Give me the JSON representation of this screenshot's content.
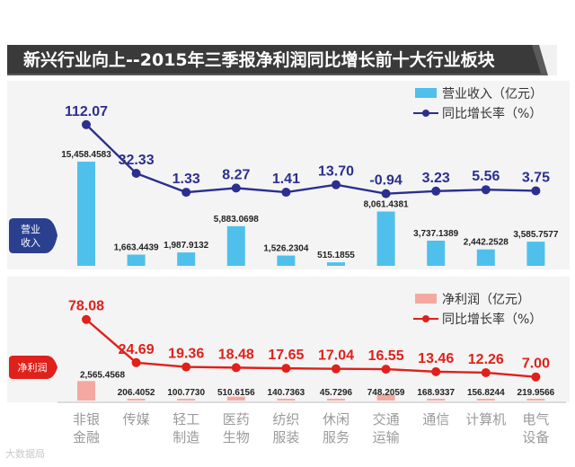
{
  "chart_data": {
    "type": "bar+line",
    "title": "新兴行业向上--2015年三季报净利润同比增长前十大行业板块",
    "categories": [
      [
        "非银",
        "金融"
      ],
      [
        "传媒",
        ""
      ],
      [
        "轻工",
        "制造"
      ],
      [
        "医药",
        "生物"
      ],
      [
        "纺织",
        "服装"
      ],
      [
        "休闲",
        "服务"
      ],
      [
        "交通",
        "运输"
      ],
      [
        "通信",
        ""
      ],
      [
        "计算机",
        ""
      ],
      [
        "电气",
        "设备"
      ]
    ],
    "revenue_panel": {
      "tag": [
        "营业",
        "收入"
      ],
      "legend": {
        "bar": "营业收入（亿元）",
        "line": "同比增长率（%）"
      },
      "bar_labels": [
        "15,458.4583",
        "1,663.4439",
        "1,987.9132",
        "5,883.0698",
        "1,526.2304",
        "515.1855",
        "8,061.4381",
        "3,737.1389",
        "2,442.2528",
        "3,585.7577"
      ],
      "bar_values": [
        15458.4583,
        1663.4439,
        1987.9132,
        5883.0698,
        1526.2304,
        515.1855,
        8061.4381,
        3737.1389,
        2442.2528,
        3585.7577
      ],
      "growth_labels": [
        "112.07",
        "32.33",
        "1.33",
        "8.27",
        "1.41",
        "13.70",
        "-0.94",
        "3.23",
        "5.56",
        "3.75"
      ],
      "growth_values": [
        112.07,
        32.33,
        1.33,
        8.27,
        1.41,
        13.7,
        -0.94,
        3.23,
        5.56,
        3.75
      ],
      "bar_color": "#4fc0ec",
      "line_color": "#2b2f8f"
    },
    "profit_panel": {
      "tag": [
        "净利润"
      ],
      "legend": {
        "bar": "净利润（亿元）",
        "line": "同比增长率（%）"
      },
      "bar_labels": [
        "2,565.4568",
        "206.4052",
        "100.7730",
        "510.6156",
        "140.7363",
        "45.7296",
        "748.2059",
        "168.9337",
        "156.8244",
        "219.9566"
      ],
      "bar_values": [
        2565.4568,
        206.4052,
        100.773,
        510.6156,
        140.7363,
        45.7296,
        748.2059,
        168.9337,
        156.8244,
        219.9566
      ],
      "growth_labels": [
        "78.08",
        "24.69",
        "19.36",
        "18.48",
        "17.65",
        "17.04",
        "16.55",
        "13.46",
        "12.26",
        "7.00"
      ],
      "growth_values": [
        78.08,
        24.69,
        19.36,
        18.48,
        17.65,
        17.04,
        16.55,
        13.46,
        12.26,
        7.0
      ],
      "bar_color": "#f4a9a0",
      "line_color": "#e0201b"
    },
    "title_bg": "#3a3a3a"
  },
  "watermark": "大数据局"
}
